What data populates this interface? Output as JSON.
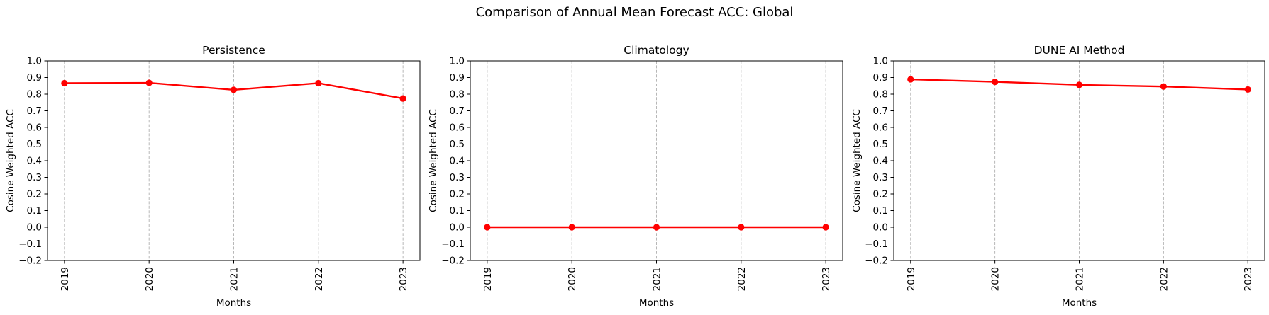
{
  "figure_title": "Comparison of Annual Mean Forecast ACC: Global",
  "styles": {
    "line_color": "#ff0000",
    "grid_color": "#b0b0b0",
    "axis_color": "#000000",
    "text_color": "#000000",
    "background_color": "#ffffff"
  },
  "chart_data": [
    {
      "type": "line",
      "title": "Persistence",
      "xlabel": "Months",
      "ylabel": "Cosine Weighted ACC",
      "categories": [
        "2019",
        "2020",
        "2021",
        "2022",
        "2023"
      ],
      "values": [
        0.866,
        0.868,
        0.826,
        0.866,
        0.774
      ],
      "ylim": [
        -0.2,
        1.0
      ],
      "ytick_labels": [
        "1.0",
        "0.9",
        "0.8",
        "0.7",
        "0.6",
        "0.5",
        "0.4",
        "0.3",
        "0.2",
        "0.1",
        "0.0",
        "−0.1",
        "−0.2"
      ],
      "grid": "vertical-dashed",
      "marker": "circle",
      "legend": "none"
    },
    {
      "type": "line",
      "title": "Climatology",
      "xlabel": "Months",
      "ylabel": "Cosine Weighted ACC",
      "categories": [
        "2019",
        "2020",
        "2021",
        "2022",
        "2023"
      ],
      "values": [
        0.0,
        0.0,
        0.0,
        0.0,
        0.0
      ],
      "ylim": [
        -0.2,
        1.0
      ],
      "ytick_labels": [
        "1.0",
        "0.9",
        "0.8",
        "0.7",
        "0.6",
        "0.5",
        "0.4",
        "0.3",
        "0.2",
        "0.1",
        "0.0",
        "−0.1",
        "−0.2"
      ],
      "grid": "vertical-dashed",
      "marker": "circle",
      "legend": "none"
    },
    {
      "type": "line",
      "title": "DUNE AI Method",
      "xlabel": "Months",
      "ylabel": "Cosine Weighted ACC",
      "categories": [
        "2019",
        "2020",
        "2021",
        "2022",
        "2023"
      ],
      "values": [
        0.889,
        0.874,
        0.856,
        0.846,
        0.828
      ],
      "ylim": [
        -0.2,
        1.0
      ],
      "ytick_labels": [
        "1.0",
        "0.9",
        "0.8",
        "0.7",
        "0.6",
        "0.5",
        "0.4",
        "0.3",
        "0.2",
        "0.1",
        "0.0",
        "−0.1",
        "−0.2"
      ],
      "grid": "vertical-dashed",
      "marker": "circle",
      "legend": "none"
    }
  ]
}
